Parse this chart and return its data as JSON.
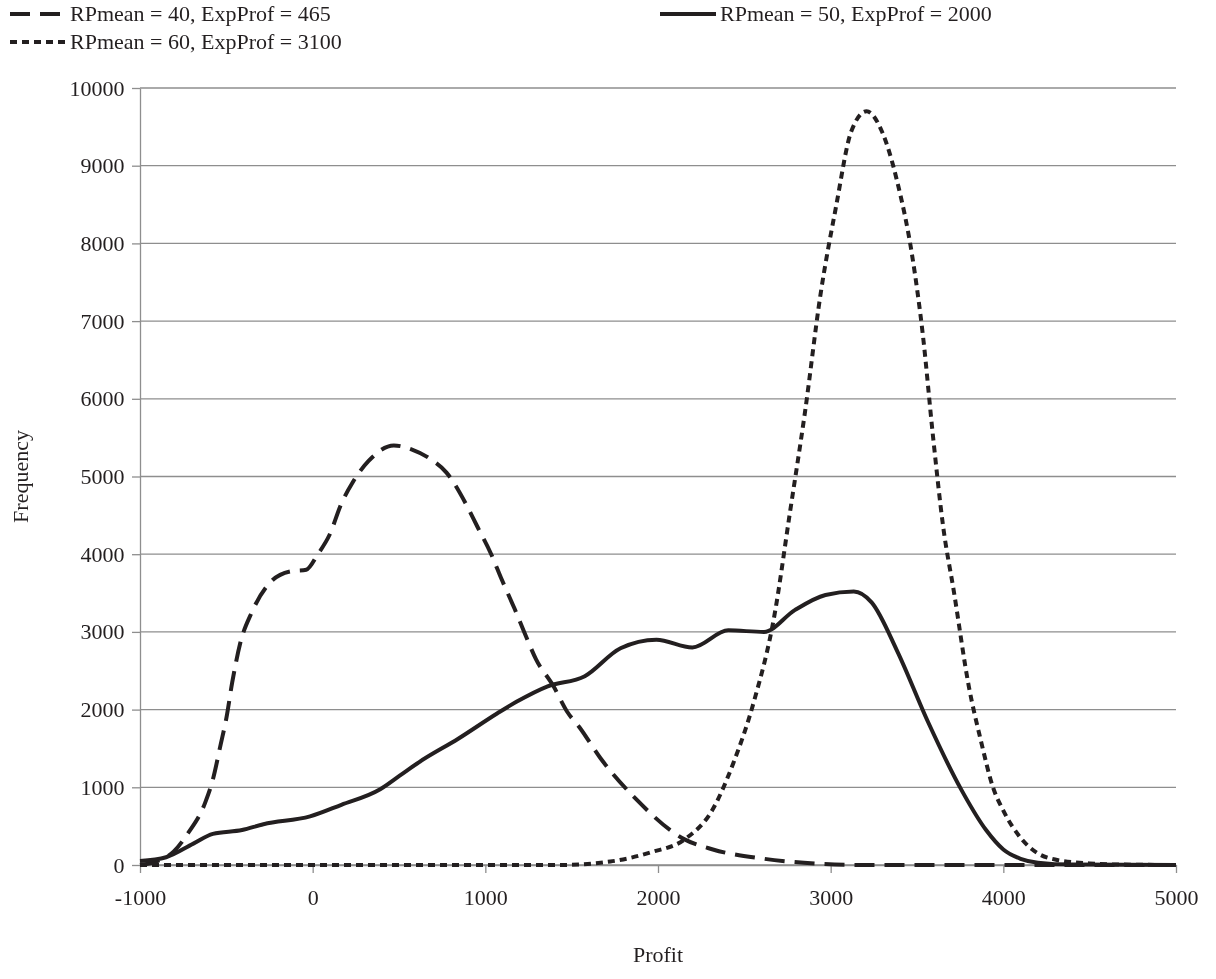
{
  "chart_data": {
    "type": "line",
    "xlabel": "Profit",
    "ylabel": "Frequency",
    "xlim": [
      -1000,
      5000
    ],
    "xticks": [
      -1000,
      0,
      1000,
      2000,
      3000,
      4000,
      5000
    ],
    "ylim": [
      0,
      10000
    ],
    "yticks": [
      0,
      1000,
      2000,
      3000,
      4000,
      5000,
      6000,
      7000,
      8000,
      9000,
      10000
    ],
    "grid": "y",
    "legend": "top",
    "marker": "none",
    "series": [
      {
        "name": "RPmean = 40, ExpProf = 465",
        "color": "#231f20",
        "line_style": "dashed",
        "x": [
          -1000,
          -900,
          -804,
          -725,
          -623,
          -578,
          -533,
          -499,
          -466,
          -420,
          -353,
          -240,
          -127,
          -37,
          30,
          98,
          166,
          233,
          324,
          470,
          572,
          685,
          775,
          887,
          955,
          1034,
          1090,
          1169,
          1225,
          1293,
          1395,
          1473,
          1546,
          1665,
          1872,
          2154,
          2318,
          2614,
          2911,
          3208,
          4000,
          5000
        ],
        "values": [
          0,
          50,
          175,
          400,
          800,
          1100,
          1550,
          1900,
          2350,
          2850,
          3250,
          3650,
          3780,
          3800,
          4000,
          4250,
          4650,
          4930,
          5200,
          5400,
          5350,
          5220,
          5050,
          4650,
          4350,
          4000,
          3700,
          3300,
          3000,
          2650,
          2300,
          1975,
          1770,
          1380,
          850,
          330,
          200,
          80,
          20,
          0,
          0,
          0
        ]
      },
      {
        "name": "RPmean = 50, ExpProf = 2000",
        "color": "#231f20",
        "line_style": "solid",
        "x": [
          -1000,
          -849,
          -691,
          -578,
          -409,
          -285,
          -15,
          166,
          391,
          504,
          617,
          843,
          1068,
          1180,
          1361,
          1576,
          1783,
          1991,
          2199,
          2407,
          2614,
          2792,
          2970,
          3134,
          3237,
          3386,
          3564,
          3754,
          3900,
          4000,
          4100,
          4200,
          4400,
          5000
        ],
        "values": [
          50,
          100,
          275,
          400,
          450,
          525,
          625,
          775,
          975,
          1150,
          1325,
          1625,
          1950,
          2100,
          2300,
          2430,
          2790,
          2900,
          2800,
          3020,
          3000,
          3280,
          3475,
          3520,
          3380,
          2750,
          1840,
          980,
          450,
          200,
          80,
          30,
          5,
          0
        ]
      },
      {
        "name": "RPmean = 60, ExpProf = 3100",
        "color": "#231f20",
        "line_style": "dotted",
        "x": [
          -1000,
          0,
          1000,
          1427,
          1724,
          1961,
          2154,
          2318,
          2436,
          2555,
          2674,
          2763,
          2852,
          2941,
          3030,
          3119,
          3208,
          3297,
          3386,
          3475,
          3534,
          3593,
          3653,
          3712,
          3800,
          3870,
          3940,
          4000,
          4100,
          4200,
          4300,
          4500,
          4700,
          5000
        ],
        "values": [
          0,
          0,
          0,
          0,
          45,
          165,
          330,
          720,
          1310,
          2100,
          3210,
          4520,
          5840,
          7340,
          8460,
          9440,
          9700,
          9440,
          8790,
          7800,
          6820,
          5510,
          4330,
          3540,
          2300,
          1600,
          1000,
          700,
          350,
          150,
          70,
          20,
          5,
          0
        ]
      }
    ]
  }
}
